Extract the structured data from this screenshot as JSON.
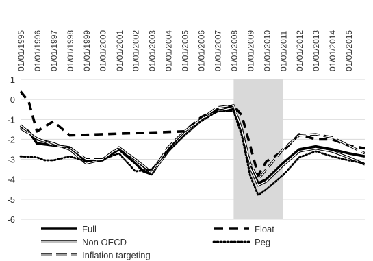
{
  "chart_data": {
    "type": "line",
    "title": "",
    "xlabel": "",
    "ylabel": "",
    "x_axis_position": "top",
    "x": [
      "01/01/1995",
      "01/01/1996",
      "01/01/1997",
      "01/01/1998",
      "01/01/1999",
      "01/01/2000",
      "01/01/2001",
      "01/01/2002",
      "01/01/2003",
      "01/01/2004",
      "01/01/2005",
      "01/01/2006",
      "01/01/2007",
      "01/01/2008",
      "01/01/2009",
      "01/01/2010",
      "01/01/2011",
      "01/01/2012",
      "01/01/2013",
      "01/01/2014",
      "01/01/2015"
    ],
    "x_range": [
      "01/01/1995",
      "01/01/2016"
    ],
    "ylim": [
      -6,
      1
    ],
    "yticks": [
      "1",
      "0",
      "-1",
      "-2",
      "-3",
      "-4",
      "-5",
      "-6"
    ],
    "grid": "horizontal",
    "shaded_region": {
      "from": "01/01/2008",
      "to": "01/01/2011",
      "color": "#d9d9d9"
    },
    "legend_position": "bottom",
    "series": [
      {
        "name": "Full",
        "style": "solid-thick",
        "color": "#000000",
        "points": [
          [
            "01/01/1995",
            -1.4
          ],
          [
            "01/01/1995-07",
            -1.6
          ],
          [
            "01/01/1996",
            -2.2
          ],
          [
            "01/01/1997",
            -2.3
          ],
          [
            "01/01/1998",
            -2.4
          ],
          [
            "01/01/1998-07",
            -2.8
          ],
          [
            "01/01/1999",
            -3.1
          ],
          [
            "01/01/2000",
            -3.05
          ],
          [
            "01/01/2001",
            -2.5
          ],
          [
            "01/01/2002",
            -3.2
          ],
          [
            "01/01/2002-07",
            -3.6
          ],
          [
            "01/01/2003",
            -3.75
          ],
          [
            "01/01/2004",
            -2.5
          ],
          [
            "01/01/2005",
            -1.7
          ],
          [
            "01/01/2006",
            -1.0
          ],
          [
            "01/01/2007",
            -0.55
          ],
          [
            "01/01/2008",
            -0.5
          ],
          [
            "01/01/2008-07",
            -1.5
          ],
          [
            "01/01/2009",
            -3.3
          ],
          [
            "01/01/2009-07",
            -4.2
          ],
          [
            "01/01/2010",
            -4.0
          ],
          [
            "01/01/2011",
            -3.2
          ],
          [
            "01/01/2012",
            -2.5
          ],
          [
            "01/01/2013",
            -2.35
          ],
          [
            "01/01/2014",
            -2.5
          ],
          [
            "01/01/2015",
            -2.7
          ],
          [
            "01/01/2016",
            -2.85
          ]
        ]
      },
      {
        "name": "Float",
        "style": "dashed-thick",
        "color": "#000000",
        "points": [
          [
            "01/01/1995",
            0.4
          ],
          [
            "01/01/1995-07",
            -0.1
          ],
          [
            "01/01/1996",
            -1.6
          ],
          [
            "01/01/1997",
            -1.1
          ],
          [
            "01/01/1998",
            -1.8
          ],
          [
            "01/01/2005",
            -1.6
          ],
          [
            "01/01/2006",
            -0.9
          ],
          [
            "01/01/2007",
            -0.5
          ],
          [
            "01/01/2008",
            -0.3
          ],
          [
            "01/01/2008-07",
            -0.8
          ],
          [
            "01/01/2009",
            -2.3
          ],
          [
            "01/01/2009-07",
            -3.8
          ],
          [
            "01/01/2010",
            -3.1
          ],
          [
            "01/01/2011",
            -2.6
          ],
          [
            "01/01/2012",
            -1.75
          ],
          [
            "01/01/2013",
            -2.0
          ],
          [
            "01/01/2014",
            -2.0
          ],
          [
            "01/01/2015",
            -2.3
          ],
          [
            "01/01/2016",
            -2.45
          ]
        ]
      },
      {
        "name": "Non OECD",
        "style": "double",
        "color": "#000000",
        "points": [
          [
            "01/01/1995",
            -1.3
          ],
          [
            "01/01/1996",
            -2.0
          ],
          [
            "01/01/1997",
            -2.2
          ],
          [
            "01/01/1998",
            -2.5
          ],
          [
            "01/01/1999",
            -3.2
          ],
          [
            "01/01/2000",
            -3.0
          ],
          [
            "01/01/2001",
            -2.45
          ],
          [
            "01/01/2002",
            -3.0
          ],
          [
            "01/01/2003",
            -3.7
          ],
          [
            "01/01/2004",
            -2.6
          ],
          [
            "01/01/2005",
            -1.7
          ],
          [
            "01/01/2006",
            -1.0
          ],
          [
            "01/01/2007",
            -0.6
          ],
          [
            "01/01/2008",
            -0.4
          ],
          [
            "01/01/2008-07",
            -1.5
          ],
          [
            "01/01/2009",
            -3.4
          ],
          [
            "01/01/2009-07",
            -4.3
          ],
          [
            "01/01/2010",
            -4.1
          ],
          [
            "01/01/2011",
            -3.3
          ],
          [
            "01/01/2012",
            -2.6
          ],
          [
            "01/01/2013",
            -2.45
          ],
          [
            "01/01/2014",
            -2.6
          ],
          [
            "01/01/2015",
            -2.9
          ],
          [
            "01/01/2016",
            -3.25
          ]
        ]
      },
      {
        "name": "Peg",
        "style": "dotted",
        "color": "#000000",
        "points": [
          [
            "01/01/1995",
            -2.85
          ],
          [
            "01/01/1996",
            -2.9
          ],
          [
            "01/01/1996-07",
            -3.05
          ],
          [
            "01/01/1997",
            -3.05
          ],
          [
            "01/01/1998",
            -2.85
          ],
          [
            "01/01/1999",
            -3.1
          ],
          [
            "01/01/2000",
            -3.0
          ],
          [
            "01/01/2001",
            -2.7
          ],
          [
            "01/01/2002",
            -3.6
          ],
          [
            "01/01/2003",
            -3.5
          ],
          [
            "01/01/2004",
            -2.6
          ],
          [
            "01/01/2005",
            -1.8
          ],
          [
            "01/01/2006",
            -1.1
          ],
          [
            "01/01/2007",
            -0.6
          ],
          [
            "01/01/2008",
            -0.6
          ],
          [
            "01/01/2008-07",
            -1.8
          ],
          [
            "01/01/2009",
            -3.8
          ],
          [
            "01/01/2009-07",
            -4.8
          ],
          [
            "01/01/2010",
            -4.5
          ],
          [
            "01/01/2011",
            -3.8
          ],
          [
            "01/01/2012",
            -2.9
          ],
          [
            "01/01/2013",
            -2.6
          ],
          [
            "01/01/2014",
            -2.85
          ],
          [
            "01/01/2015",
            -3.05
          ],
          [
            "01/01/2016",
            -3.2
          ]
        ]
      },
      {
        "name": "Inflation targeting",
        "style": "double-dashed",
        "color": "#000000",
        "points": [
          [
            "01/01/1995",
            -1.45
          ],
          [
            "01/01/1996",
            -1.95
          ],
          [
            "01/01/1997",
            -2.3
          ],
          [
            "01/01/1998",
            -2.4
          ],
          [
            "01/01/1999",
            -3.0
          ],
          [
            "01/01/2000",
            -3.0
          ],
          [
            "01/01/2001",
            -2.4
          ],
          [
            "01/01/2002",
            -3.0
          ],
          [
            "01/01/2003",
            -3.65
          ],
          [
            "01/01/2004",
            -2.4
          ],
          [
            "01/01/2005",
            -1.6
          ],
          [
            "01/01/2006",
            -1.0
          ],
          [
            "01/01/2007",
            -0.4
          ],
          [
            "01/01/2008",
            -0.3
          ],
          [
            "01/01/2008-07",
            -1.5
          ],
          [
            "01/01/2009",
            -3.2
          ],
          [
            "01/01/2009-07",
            -4.0
          ],
          [
            "01/01/2010",
            -3.5
          ],
          [
            "01/01/2011",
            -2.5
          ],
          [
            "01/01/2012",
            -1.8
          ],
          [
            "01/01/2013",
            -1.75
          ],
          [
            "01/01/2014",
            -1.9
          ],
          [
            "01/01/2015",
            -2.3
          ],
          [
            "01/01/2016",
            -2.7
          ]
        ]
      }
    ]
  }
}
